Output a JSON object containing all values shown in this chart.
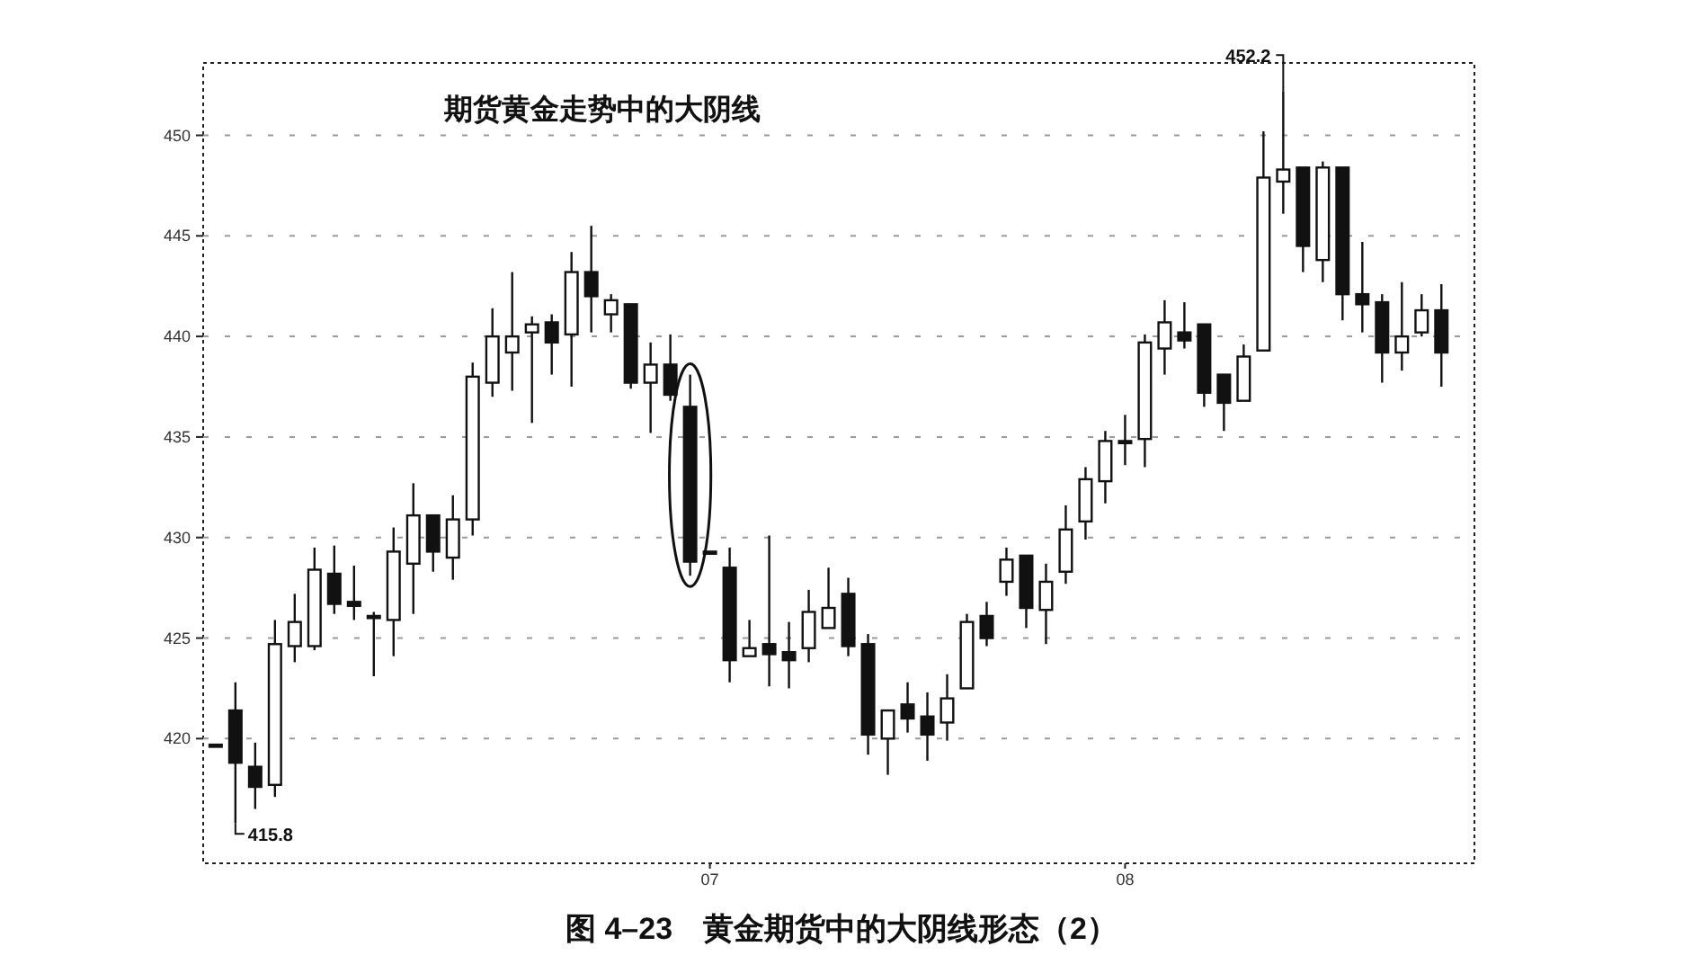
{
  "chart_data": {
    "type": "candlestick",
    "title": "期货黄金走势中的大阴线",
    "categories": [
      null,
      null,
      null,
      null,
      null,
      null,
      null,
      null,
      null,
      null,
      null,
      null,
      null,
      null,
      null,
      null,
      null,
      null,
      null,
      null,
      null,
      null,
      null,
      null,
      null,
      "07",
      null,
      null,
      null,
      null,
      null,
      null,
      null,
      null,
      null,
      null,
      null,
      null,
      null,
      null,
      null,
      null,
      null,
      null,
      null,
      null,
      "08",
      null,
      null,
      null,
      null,
      null,
      null,
      null,
      null,
      null,
      null,
      null,
      null,
      null,
      null,
      null,
      null
    ],
    "ohlc": [
      [
        419.7,
        419.7,
        419.7,
        419.7
      ],
      [
        421.4,
        422.8,
        415.8,
        418.8
      ],
      [
        418.6,
        419.8,
        416.5,
        417.6
      ],
      [
        417.7,
        425.9,
        417.1,
        424.7
      ],
      [
        424.6,
        427.2,
        423.8,
        425.8
      ],
      [
        424.6,
        429.5,
        424.4,
        428.4
      ],
      [
        428.2,
        429.6,
        426.2,
        426.7
      ],
      [
        426.8,
        428.6,
        425.9,
        426.6
      ],
      [
        426.1,
        426.3,
        423.1,
        426.0
      ],
      [
        425.9,
        430.5,
        424.1,
        429.3
      ],
      [
        428.7,
        432.7,
        426.2,
        431.1
      ],
      [
        431.1,
        431.1,
        428.3,
        429.3
      ],
      [
        429.0,
        432.1,
        427.9,
        430.9
      ],
      [
        430.9,
        438.7,
        430.1,
        438.0
      ],
      [
        437.7,
        441.4,
        437.0,
        440.0
      ],
      [
        439.2,
        443.2,
        437.3,
        440.0
      ],
      [
        440.2,
        441.0,
        435.7,
        440.6
      ],
      [
        440.7,
        441.1,
        438.1,
        439.7
      ],
      [
        440.1,
        444.2,
        437.5,
        443.2
      ],
      [
        443.2,
        445.5,
        440.2,
        442.0
      ],
      [
        441.1,
        442.1,
        440.2,
        441.8
      ],
      [
        441.6,
        441.6,
        437.4,
        437.7
      ],
      [
        437.7,
        439.7,
        435.2,
        438.6
      ],
      [
        438.6,
        440.1,
        436.8,
        437.1
      ],
      [
        436.5,
        438.1,
        428.1,
        428.8
      ],
      [
        429.3,
        429.3,
        429.3,
        429.3
      ],
      [
        428.5,
        429.5,
        422.8,
        423.9
      ],
      [
        424.1,
        425.9,
        424.1,
        424.5
      ],
      [
        424.7,
        430.1,
        422.6,
        424.2
      ],
      [
        424.3,
        425.8,
        422.5,
        423.9
      ],
      [
        424.5,
        427.4,
        423.8,
        426.3
      ],
      [
        425.5,
        428.5,
        425.5,
        426.5
      ],
      [
        427.2,
        428.0,
        424.1,
        424.6
      ],
      [
        424.7,
        425.2,
        419.2,
        420.2
      ],
      [
        420.0,
        421.4,
        418.2,
        421.4
      ],
      [
        421.7,
        422.8,
        420.3,
        421.0
      ],
      [
        421.1,
        422.3,
        418.9,
        420.2
      ],
      [
        420.8,
        423.2,
        419.9,
        422.0
      ],
      [
        422.5,
        426.2,
        422.5,
        425.8
      ],
      [
        426.1,
        426.8,
        424.6,
        425.0
      ],
      [
        427.8,
        429.5,
        427.1,
        428.9
      ],
      [
        429.1,
        429.1,
        425.5,
        426.5
      ],
      [
        426.4,
        428.7,
        424.7,
        427.8
      ],
      [
        428.3,
        431.6,
        427.7,
        430.4
      ],
      [
        430.8,
        433.5,
        429.9,
        432.9
      ],
      [
        432.8,
        435.3,
        431.7,
        434.8
      ],
      [
        434.8,
        436.1,
        433.6,
        434.8
      ],
      [
        434.9,
        440.1,
        433.5,
        439.7
      ],
      [
        439.4,
        441.8,
        438.1,
        440.7
      ],
      [
        440.2,
        441.7,
        439.4,
        439.8
      ],
      [
        440.6,
        440.6,
        436.5,
        437.2
      ],
      [
        438.1,
        438.1,
        435.3,
        436.7
      ],
      [
        436.8,
        439.6,
        436.8,
        439.0
      ],
      [
        439.3,
        450.2,
        439.3,
        447.9
      ],
      [
        447.7,
        452.2,
        446.1,
        448.3
      ],
      [
        448.4,
        448.4,
        443.2,
        444.5
      ],
      [
        443.8,
        448.7,
        442.7,
        448.4
      ],
      [
        448.4,
        448.4,
        440.8,
        442.1
      ],
      [
        442.1,
        444.7,
        440.2,
        441.6
      ],
      [
        441.7,
        442.1,
        437.7,
        439.2
      ],
      [
        439.2,
        442.7,
        438.3,
        440.0
      ],
      [
        440.2,
        442.1,
        440.0,
        441.3
      ],
      [
        441.3,
        442.6,
        437.5,
        439.2
      ]
    ],
    "ylim": [
      413.8,
      453.6
    ],
    "yticks": [
      420,
      425,
      430,
      435,
      440,
      445,
      450
    ],
    "grid": "y",
    "annotations": [
      "415.8",
      "452.2",
      "图 4–23　黄金期货中的大阴线形态（2）"
    ]
  }
}
